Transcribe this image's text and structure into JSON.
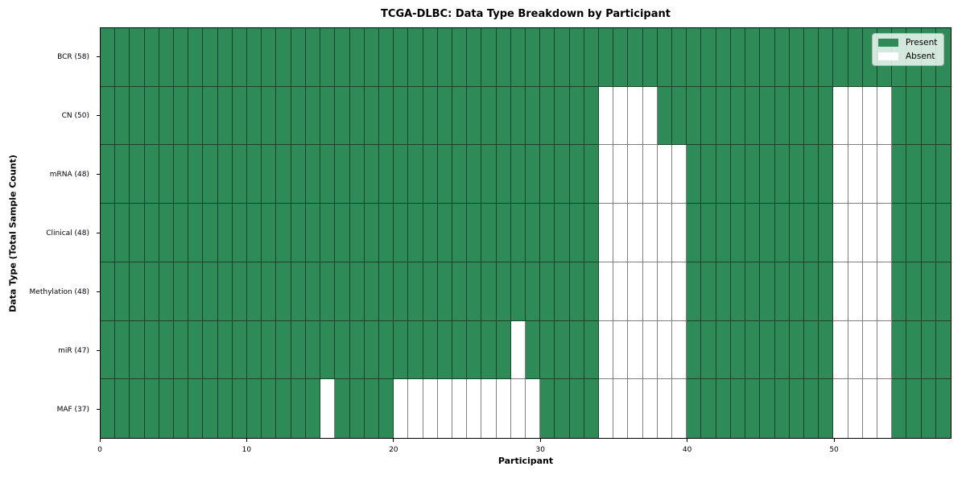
{
  "chart_data": {
    "type": "heatmap",
    "title": "TCGA-DLBC: Data Type Breakdown by Participant",
    "xlabel": "Participant",
    "ylabel": "Data Type (Total Sample Count)",
    "n_participants": 58,
    "x_range": [
      0,
      58
    ],
    "x_ticks": [
      0,
      10,
      20,
      30,
      40,
      50
    ],
    "grid": "cell-borders-only",
    "legend_position": "upper-right-inside",
    "colors": {
      "present": "#2E8B57",
      "absent": "#ffffff",
      "cell_border": "rgba(0,0,0,0.5)"
    },
    "legend": [
      {
        "label": "Present",
        "key": "present",
        "color": "#2E8B57"
      },
      {
        "label": "Absent",
        "key": "absent",
        "color": "#ffffff"
      }
    ],
    "rows": [
      {
        "label": "BCR (58)",
        "name": "BCR",
        "total": 58,
        "absent": []
      },
      {
        "label": "CN (50)",
        "name": "CN",
        "total": 50,
        "absent": [
          34,
          35,
          36,
          37,
          50,
          51,
          52,
          53
        ]
      },
      {
        "label": "mRNA (48)",
        "name": "mRNA",
        "total": 48,
        "absent": [
          34,
          35,
          36,
          37,
          38,
          39,
          50,
          51,
          52,
          53
        ]
      },
      {
        "label": "Clinical (48)",
        "name": "Clinical",
        "total": 48,
        "absent": [
          34,
          35,
          36,
          37,
          38,
          39,
          50,
          51,
          52,
          53
        ]
      },
      {
        "label": "Methylation (48)",
        "name": "Methylation",
        "total": 48,
        "absent": [
          34,
          35,
          36,
          37,
          38,
          39,
          50,
          51,
          52,
          53
        ]
      },
      {
        "label": "miR (47)",
        "name": "miR",
        "total": 47,
        "absent": [
          28,
          34,
          35,
          36,
          37,
          38,
          39,
          50,
          51,
          52,
          53
        ]
      },
      {
        "label": "MAF (37)",
        "name": "MAF",
        "total": 37,
        "absent": [
          15,
          20,
          21,
          22,
          23,
          24,
          25,
          26,
          27,
          28,
          29,
          34,
          35,
          36,
          37,
          38,
          39,
          50,
          51,
          52,
          53
        ]
      }
    ]
  }
}
